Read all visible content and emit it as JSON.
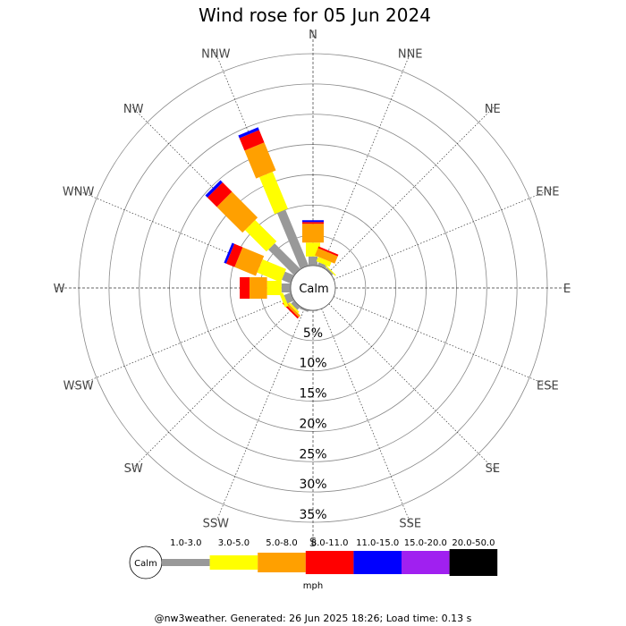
{
  "chart_data": {
    "type": "windrose",
    "title": "Wind rose for 05 Jun 2024",
    "directions": [
      "N",
      "NNE",
      "NE",
      "ENE",
      "E",
      "ESE",
      "SE",
      "SSE",
      "S",
      "SSW",
      "SW",
      "WSW",
      "W",
      "WNW",
      "NW",
      "NNW"
    ],
    "ring_labels": [
      "5%",
      "10%",
      "15%",
      "20%",
      "25%",
      "30%",
      "35%"
    ],
    "ring_values": [
      5,
      10,
      15,
      20,
      25,
      30,
      35
    ],
    "rmax": 35,
    "calm_label": "Calm",
    "unit": "mph",
    "speed_bins": [
      {
        "label": "1.0-3.0",
        "color": "#999999"
      },
      {
        "label": "3.0-5.0",
        "color": "#ffff00"
      },
      {
        "label": "5.0-8.0",
        "color": "#ffa000"
      },
      {
        "label": "8.0-11.0",
        "color": "#ff0000"
      },
      {
        "label": "11.0-15.0",
        "color": "#0000ff"
      },
      {
        "label": "15.0-20.0",
        "color": "#a020f0"
      },
      {
        "label": "20.0-50.0",
        "color": "#000000"
      }
    ],
    "series": [
      {
        "direction": "N",
        "values": [
          1.5,
          2.3,
          3.1,
          0.3,
          0.3,
          0,
          0
        ]
      },
      {
        "direction": "NNE",
        "values": [
          0.6,
          0.8,
          1.3,
          0.3,
          0,
          0,
          0
        ]
      },
      {
        "direction": "NE",
        "values": [
          0.3,
          0.2,
          0,
          0,
          0,
          0,
          0
        ]
      },
      {
        "direction": "S",
        "values": [
          0.1,
          0,
          0,
          0,
          0,
          0,
          0
        ]
      },
      {
        "direction": "SSW",
        "values": [
          0.3,
          0,
          0,
          0,
          0,
          0,
          0
        ]
      },
      {
        "direction": "SW",
        "values": [
          0.7,
          0.3,
          0.4,
          0.3,
          0,
          0,
          0
        ]
      },
      {
        "direction": "WSW",
        "values": [
          1.2,
          0.6,
          0,
          0,
          0,
          0,
          0
        ]
      },
      {
        "direction": "W",
        "values": [
          1.5,
          2.4,
          2.9,
          1.6,
          0,
          0,
          0
        ]
      },
      {
        "direction": "WNW",
        "values": [
          1.6,
          4.2,
          3.8,
          1.5,
          0.4,
          0,
          0
        ]
      },
      {
        "direction": "NW",
        "values": [
          6.0,
          5.0,
          6.0,
          2.2,
          0.5,
          0,
          0
        ]
      },
      {
        "direction": "NNW",
        "values": [
          10.0,
          6.6,
          5.0,
          2.2,
          0.5,
          0,
          0
        ]
      }
    ]
  },
  "footer": "@nw3weather. Generated: 26 Jun 2025 18:26; Load time: 0.13 s"
}
